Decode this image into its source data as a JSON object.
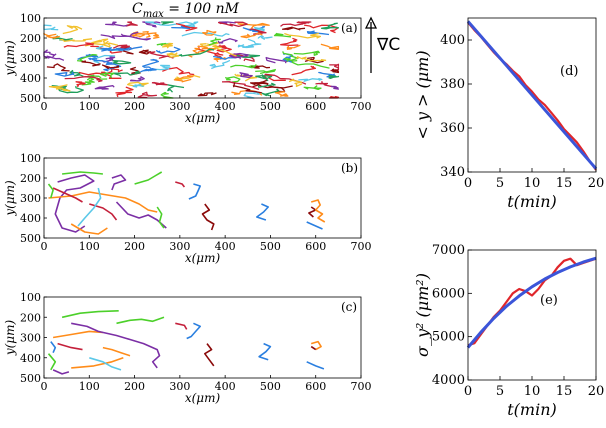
{
  "figure": {
    "title": "C_max = 100 nM",
    "title_parts": {
      "c": "C",
      "sub": "max",
      "rest": " = 100 nM"
    },
    "gradient_label": "∇C"
  },
  "chart_data": [
    {
      "id": "a",
      "panel_label": "(a)",
      "type": "scatter",
      "xlabel": "x(μm)",
      "ylabel": "y(μm)",
      "xlim": [
        0,
        700
      ],
      "ylim": [
        100,
        500
      ],
      "y_inverted": true,
      "x_ticks": [
        0,
        100,
        200,
        300,
        400,
        500,
        600,
        700
      ],
      "y_ticks": [
        100,
        200,
        300,
        400,
        500
      ],
      "description_trajectories": "dense cell trajectories covering x 0–650, y 120–500",
      "trajectory_count": 150,
      "x_range": [
        0,
        650
      ],
      "y_range": [
        120,
        500
      ],
      "step": 18
    },
    {
      "id": "b",
      "panel_label": "(b)",
      "type": "scatter",
      "xlabel": "x(μm)",
      "ylabel": "y(μm)",
      "xlim": [
        0,
        700
      ],
      "ylim": [
        100,
        500
      ],
      "y_inverted": true,
      "x_ticks": [
        0,
        100,
        200,
        300,
        400,
        500,
        600,
        700
      ],
      "y_ticks": [
        100,
        200,
        300,
        400,
        500
      ],
      "tracks": [
        {
          "color": "#7b2fa5",
          "points": [
            [
              30,
              220
            ],
            [
              60,
              200
            ],
            [
              90,
              185
            ],
            [
              110,
              215
            ],
            [
              80,
              250
            ],
            [
              50,
              260
            ],
            [
              35,
              300
            ],
            [
              25,
              380
            ],
            [
              40,
              450
            ],
            [
              70,
              470
            ],
            [
              90,
              440
            ]
          ]
        },
        {
          "color": "#7b2fa5",
          "points": [
            [
              150,
              200
            ],
            [
              170,
              185
            ],
            [
              180,
              210
            ],
            [
              155,
              230
            ],
            [
              150,
              260
            ]
          ]
        },
        {
          "color": "#7b2fa5",
          "points": [
            [
              160,
              320
            ],
            [
              185,
              380
            ],
            [
              210,
              400
            ],
            [
              230,
              385
            ],
            [
              250,
              410
            ],
            [
              270,
              450
            ]
          ]
        },
        {
          "color": "#ff8c1a",
          "points": [
            [
              10,
              300
            ],
            [
              60,
              290
            ],
            [
              100,
              270
            ],
            [
              140,
              285
            ],
            [
              180,
              300
            ],
            [
              210,
              330
            ],
            [
              230,
              360
            ],
            [
              250,
              370
            ]
          ]
        },
        {
          "color": "#ff8c1a",
          "points": [
            [
              60,
              430
            ],
            [
              90,
              470
            ],
            [
              120,
              480
            ],
            [
              140,
              450
            ]
          ]
        },
        {
          "color": "#4cd02a",
          "points": [
            [
              40,
              180
            ],
            [
              80,
              170
            ],
            [
              110,
              175
            ],
            [
              130,
              180
            ]
          ]
        },
        {
          "color": "#4cd02a",
          "points": [
            [
              200,
              230
            ],
            [
              230,
              210
            ],
            [
              245,
              190
            ],
            [
              260,
              170
            ]
          ]
        },
        {
          "color": "#4cd02a",
          "points": [
            [
              250,
              345
            ],
            [
              260,
              380
            ],
            [
              255,
              420
            ],
            [
              265,
              450
            ]
          ]
        },
        {
          "color": "#c4203b",
          "points": [
            [
              20,
              250
            ],
            [
              45,
              275
            ],
            [
              70,
              300
            ],
            [
              85,
              320
            ]
          ]
        },
        {
          "color": "#c4203b",
          "points": [
            [
              100,
              330
            ],
            [
              130,
              350
            ],
            [
              150,
              380
            ],
            [
              160,
              410
            ]
          ]
        },
        {
          "color": "#c4203b",
          "points": [
            [
              290,
              220
            ],
            [
              305,
              230
            ],
            [
              310,
              245
            ]
          ]
        },
        {
          "color": "#8b0a0a",
          "points": [
            [
              355,
              330
            ],
            [
              365,
              360
            ],
            [
              350,
              380
            ],
            [
              360,
              410
            ],
            [
              375,
              430
            ],
            [
              370,
              460
            ]
          ]
        },
        {
          "color": "#8b0a0a",
          "points": [
            [
              590,
              345
            ],
            [
              600,
              360
            ],
            [
              585,
              375
            ],
            [
              595,
              395
            ]
          ]
        },
        {
          "color": "#2a7fe0",
          "points": [
            [
              330,
              230
            ],
            [
              345,
              240
            ],
            [
              340,
              265
            ],
            [
              335,
              290
            ],
            [
              320,
              305
            ]
          ]
        },
        {
          "color": "#2a7fe0",
          "points": [
            [
              480,
              330
            ],
            [
              495,
              345
            ],
            [
              485,
              370
            ],
            [
              470,
              395
            ],
            [
              490,
              410
            ]
          ]
        },
        {
          "color": "#2a7fe0",
          "points": [
            [
              580,
              420
            ],
            [
              600,
              440
            ],
            [
              615,
              455
            ]
          ]
        },
        {
          "color": "#5bc8e8",
          "points": [
            [
              120,
              250
            ],
            [
              125,
              300
            ],
            [
              110,
              350
            ],
            [
              90,
              400
            ],
            [
              75,
              440
            ]
          ]
        },
        {
          "color": "#ff8c1a",
          "points": [
            [
              590,
              320
            ],
            [
              605,
              310
            ],
            [
              610,
              335
            ],
            [
              600,
              360
            ],
            [
              615,
              380
            ],
            [
              605,
              400
            ],
            [
              620,
              420
            ]
          ]
        },
        {
          "color": "#4cd02a",
          "points": [
            [
              10,
              230
            ],
            [
              20,
              260
            ],
            [
              15,
              300
            ]
          ]
        }
      ]
    },
    {
      "id": "c",
      "panel_label": "(c)",
      "type": "scatter",
      "xlabel": "x(μm)",
      "ylabel": "y(μm)",
      "xlim": [
        0,
        700
      ],
      "ylim": [
        100,
        500
      ],
      "y_inverted": true,
      "x_ticks": [
        0,
        100,
        200,
        300,
        400,
        500,
        600,
        700
      ],
      "y_ticks": [
        100,
        200,
        300,
        400,
        500
      ],
      "tracks": [
        {
          "color": "#4cd02a",
          "points": [
            [
              40,
              200
            ],
            [
              80,
              180
            ],
            [
              120,
              172
            ],
            [
              165,
              168
            ]
          ]
        },
        {
          "color": "#4cd02a",
          "points": [
            [
              160,
              230
            ],
            [
              190,
              215
            ],
            [
              215,
              210
            ],
            [
              240,
              220
            ],
            [
              265,
              200
            ]
          ]
        },
        {
          "color": "#ff8c1a",
          "points": [
            [
              20,
              300
            ],
            [
              60,
              285
            ],
            [
              100,
              270
            ],
            [
              130,
              275
            ]
          ]
        },
        {
          "color": "#ff8c1a",
          "points": [
            [
              60,
              450
            ],
            [
              110,
              440
            ],
            [
              150,
              420
            ],
            [
              175,
              400
            ]
          ]
        },
        {
          "color": "#ff8c1a",
          "points": [
            [
              590,
              330
            ],
            [
              605,
              320
            ],
            [
              612,
              345
            ],
            [
              600,
              360
            ]
          ]
        },
        {
          "color": "#7b2fa5",
          "points": [
            [
              60,
              230
            ],
            [
              95,
              245
            ],
            [
              120,
              270
            ],
            [
              160,
              290
            ],
            [
              190,
              310
            ],
            [
              220,
              330
            ],
            [
              250,
              360
            ],
            [
              255,
              390
            ],
            [
              240,
              420
            ],
            [
              250,
              450
            ]
          ]
        },
        {
          "color": "#7b2fa5",
          "points": [
            [
              20,
              460
            ],
            [
              40,
              480
            ],
            [
              55,
              470
            ]
          ]
        },
        {
          "color": "#c4203b",
          "points": [
            [
              30,
              330
            ],
            [
              60,
              350
            ],
            [
              85,
              360
            ]
          ]
        },
        {
          "color": "#c4203b",
          "points": [
            [
              290,
              230
            ],
            [
              310,
              240
            ],
            [
              315,
              260
            ]
          ]
        },
        {
          "color": "#8b0a0a",
          "points": [
            [
              360,
              330
            ],
            [
              370,
              360
            ],
            [
              355,
              380
            ],
            [
              365,
              410
            ],
            [
              375,
              440
            ]
          ]
        },
        {
          "color": "#8b0a0a",
          "points": [
            [
              590,
              345
            ],
            [
              600,
              360
            ]
          ]
        },
        {
          "color": "#2a7fe0",
          "points": [
            [
              330,
              230
            ],
            [
              345,
              245
            ],
            [
              335,
              270
            ],
            [
              325,
              295
            ],
            [
              315,
              305
            ]
          ]
        },
        {
          "color": "#2a7fe0",
          "points": [
            [
              485,
              330
            ],
            [
              500,
              345
            ],
            [
              490,
              370
            ],
            [
              475,
              395
            ],
            [
              495,
              410
            ]
          ]
        },
        {
          "color": "#2a7fe0",
          "points": [
            [
              580,
              420
            ],
            [
              600,
              440
            ],
            [
              618,
              455
            ]
          ]
        },
        {
          "color": "#2a7fe0",
          "points": [
            [
              15,
              320
            ],
            [
              25,
              350
            ],
            [
              20,
              375
            ]
          ]
        },
        {
          "color": "#5bc8e8",
          "points": [
            [
              100,
              400
            ],
            [
              130,
              420
            ],
            [
              150,
              445
            ],
            [
              170,
              460
            ]
          ]
        },
        {
          "color": "#ff8c1a",
          "points": [
            [
              130,
              350
            ],
            [
              150,
              360
            ],
            [
              170,
              375
            ],
            [
              190,
              390
            ]
          ]
        },
        {
          "color": "#4cd02a",
          "points": [
            [
              10,
              380
            ],
            [
              25,
              420
            ],
            [
              15,
              460
            ]
          ]
        }
      ]
    },
    {
      "id": "d",
      "panel_label": "(d)",
      "type": "line",
      "xlabel": "t(min)",
      "ylabel": "< y > (μm)",
      "xlim": [
        0,
        20
      ],
      "ylim": [
        340,
        410
      ],
      "x_ticks": [
        0,
        5,
        10,
        15,
        20
      ],
      "y_ticks": [
        340,
        360,
        380,
        400
      ],
      "series": [
        {
          "color": "#e0262b",
          "x": [
            0,
            1,
            2,
            3,
            4,
            5,
            6,
            7,
            8,
            9,
            10,
            11,
            12,
            13,
            14,
            15,
            16,
            17,
            18,
            19,
            20
          ],
          "y": [
            408,
            404.5,
            401.5,
            398,
            394.5,
            391.5,
            389,
            386,
            383.5,
            379.5,
            376.5,
            373,
            370.5,
            367,
            363.5,
            359.5,
            356.5,
            353.5,
            349.5,
            345,
            341
          ]
        },
        {
          "color": "#3b55d9",
          "x": [
            0,
            20
          ],
          "y": [
            408.5,
            341.5
          ]
        }
      ]
    },
    {
      "id": "e",
      "panel_label": "(e)",
      "type": "line",
      "xlabel": "t(min)",
      "ylabel": "σ_y² (μm²)",
      "xlim": [
        0,
        20
      ],
      "ylim": [
        4000,
        7000
      ],
      "x_ticks": [
        0,
        5,
        10,
        15,
        20
      ],
      "y_ticks": [
        4000,
        5000,
        6000,
        7000
      ],
      "series": [
        {
          "color": "#e0262b",
          "x": [
            0,
            1,
            2,
            3,
            4,
            5,
            6,
            7,
            8,
            9,
            10,
            11,
            12,
            13,
            14,
            15,
            16,
            17,
            18,
            19,
            20
          ],
          "y": [
            4800,
            4850,
            5050,
            5250,
            5450,
            5600,
            5800,
            6000,
            6100,
            6050,
            5950,
            6100,
            6300,
            6400,
            6600,
            6750,
            6800,
            6650,
            6700,
            6750,
            6800
          ]
        },
        {
          "color": "#3b55d9",
          "x": [
            0,
            2,
            4,
            6,
            8,
            10,
            12,
            14,
            16,
            18,
            20
          ],
          "y": [
            4750,
            5100,
            5420,
            5700,
            5940,
            6150,
            6330,
            6480,
            6610,
            6720,
            6810
          ]
        }
      ]
    }
  ]
}
